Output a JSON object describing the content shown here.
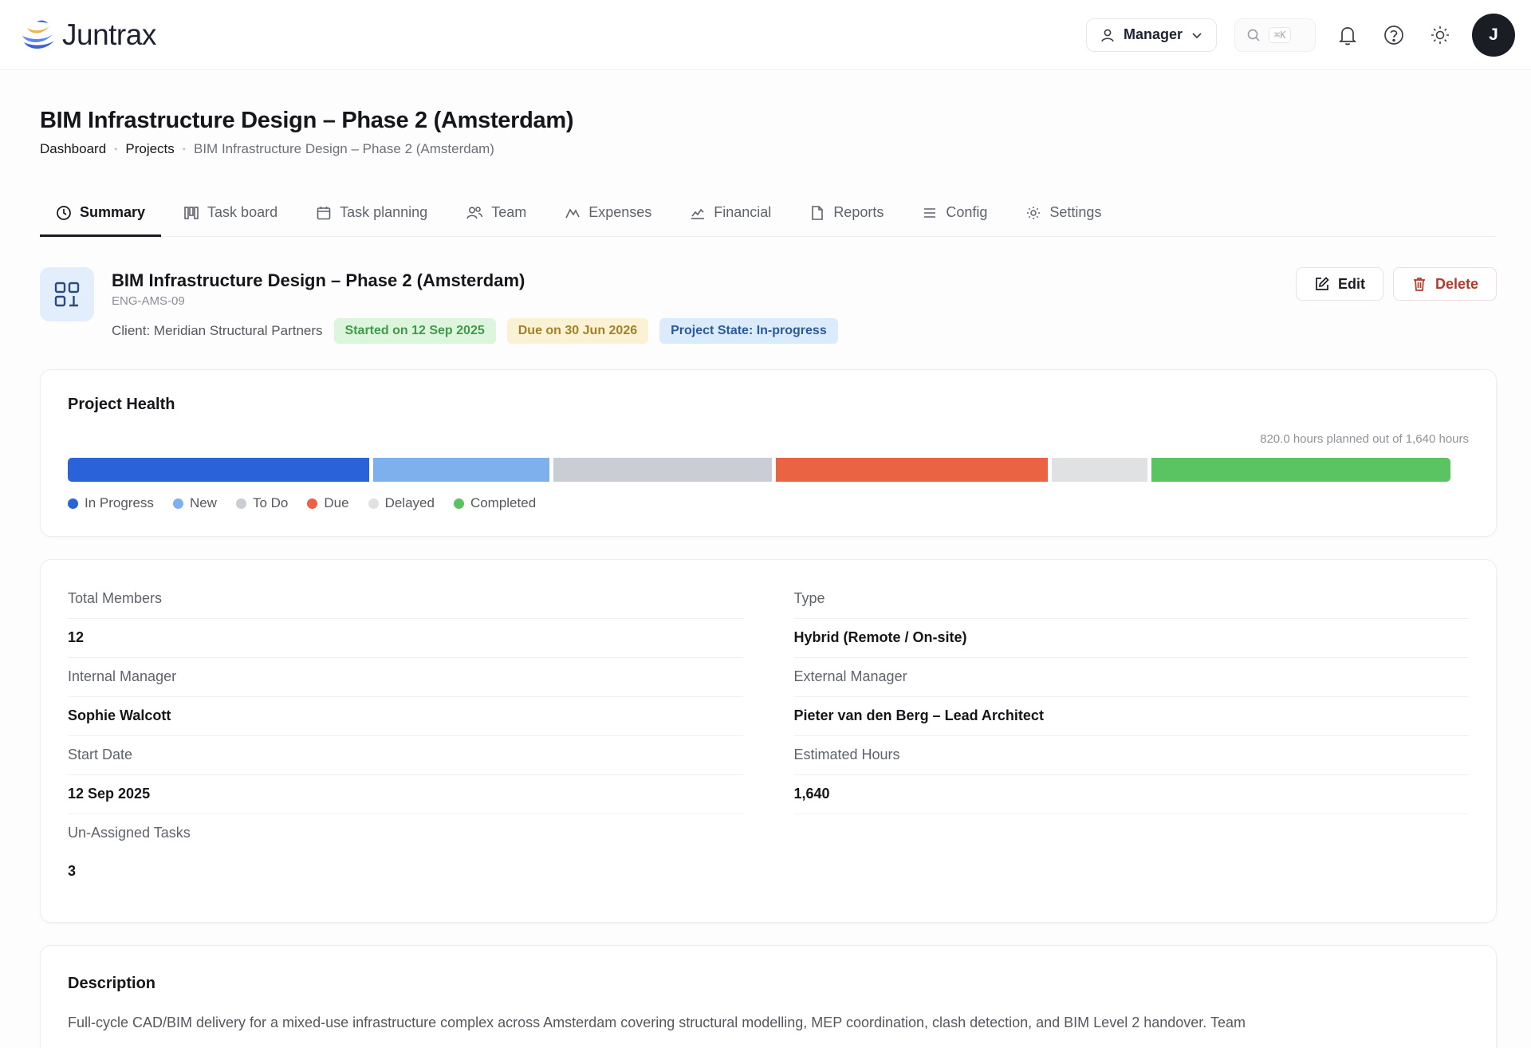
{
  "app": {
    "name": "Juntrax"
  },
  "header": {
    "role_label": "Manager",
    "search_shortcut": "⌘K",
    "avatar_initial": "J"
  },
  "page": {
    "title": "BIM Infrastructure Design – Phase 2 (Amsterdam)",
    "breadcrumb": [
      "Dashboard",
      "Projects",
      "BIM Infrastructure Design – Phase 2 (Amsterdam)"
    ]
  },
  "tabs": [
    {
      "label": "Summary",
      "icon": "clock-icon",
      "active": true
    },
    {
      "label": "Task board",
      "icon": "board-icon"
    },
    {
      "label": "Task planning",
      "icon": "calendar-icon"
    },
    {
      "label": "Team",
      "icon": "team-icon"
    },
    {
      "label": "Expenses",
      "icon": "expenses-icon"
    },
    {
      "label": "Financial",
      "icon": "chart-icon"
    },
    {
      "label": "Reports",
      "icon": "document-icon"
    },
    {
      "label": "Config",
      "icon": "list-icon"
    },
    {
      "label": "Settings",
      "icon": "sun-gear-icon"
    }
  ],
  "project": {
    "name": "BIM Infrastructure Design – Phase 2 (Amsterdam)",
    "code": "ENG-AMS-09",
    "client": "Client: Meridian Structural Partners",
    "started": "Started on 12 Sep 2025",
    "due": "Due on 30 Jun 2026",
    "state": "Project State: In-progress",
    "edit_label": "Edit",
    "delete_label": "Delete"
  },
  "health": {
    "title": "Project Health",
    "hours_note": "820.0 hours planned out of 1,640 hours",
    "segments": [
      {
        "name": "In Progress",
        "share": 0.218,
        "color": "#2a62d9"
      },
      {
        "name": "New",
        "share": 0.128,
        "color": "#7fb0ee"
      },
      {
        "name": "To Do",
        "share": 0.158,
        "color": "#cacdd3"
      },
      {
        "name": "Due",
        "share": 0.197,
        "color": "#ea6342"
      },
      {
        "name": "Delayed",
        "share": 0.069,
        "color": "#dfe1e3"
      },
      {
        "name": "Completed",
        "share": 0.217,
        "color": "#5ac463"
      }
    ]
  },
  "details": {
    "left": [
      {
        "label": "Total Members",
        "value": "12"
      },
      {
        "label": "Internal Manager",
        "value": "Sophie Walcott"
      },
      {
        "label": "Start Date",
        "value": "12 Sep 2025"
      },
      {
        "label": "Un-Assigned Tasks",
        "value": "3"
      }
    ],
    "right": [
      {
        "label": "Type",
        "value": "Hybrid (Remote / On-site)"
      },
      {
        "label": "External Manager",
        "value": "Pieter van den Berg – Lead Architect"
      },
      {
        "label": "Estimated Hours",
        "value": "1,640"
      }
    ]
  },
  "description": {
    "title": "Description",
    "text": "Full-cycle CAD/BIM delivery for a mixed-use infrastructure complex across Amsterdam covering structural modelling, MEP coordination, clash detection, and BIM Level 2 handover. Team"
  }
}
